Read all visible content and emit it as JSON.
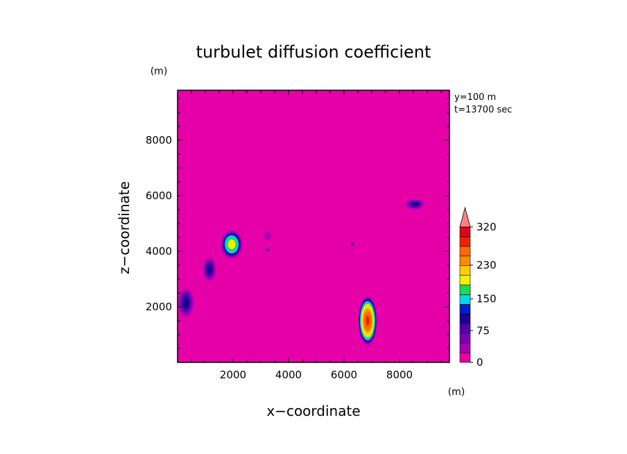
{
  "chart_data": {
    "type": "heatmap",
    "title": "turbulet diffusion coefficient",
    "xlabel": "x−coordinate",
    "ylabel": "z−coordinate",
    "x_unit": "(m)",
    "y_unit": "(m)",
    "xlim": [
      0,
      9800
    ],
    "ylim": [
      0,
      9800
    ],
    "xticks": [
      "2000",
      "4000",
      "6000",
      "8000"
    ],
    "xtick_values": [
      2000,
      4000,
      6000,
      8000
    ],
    "yticks": [
      "2000",
      "4000",
      "6000",
      "8000"
    ],
    "ytick_values": [
      2000,
      4000,
      6000,
      8000
    ],
    "annotations": [
      "y=100  m",
      "t=13700  sec"
    ],
    "background_color": "#e600a8",
    "colorbar": {
      "levels": [
        0,
        15,
        45,
        60,
        75,
        90,
        105,
        130,
        150,
        185,
        210,
        230,
        260,
        290,
        320
      ],
      "colors": [
        "#e600a8",
        "#a900b4",
        "#7d00b2",
        "#5500ae",
        "#1e0096",
        "#001fd2",
        "#00d8f0",
        "#14dc5a",
        "#f0f000",
        "#ffcc00",
        "#ff8c00",
        "#ff6a00",
        "#ee2200",
        "#e0001e"
      ],
      "tick_labels": [
        "0",
        "75",
        "150",
        "230",
        "320"
      ],
      "tick_values": [
        0,
        75,
        150,
        230,
        320
      ],
      "extend_color": "#ff8080"
    },
    "features": [
      {
        "x": 300,
        "z": 2150,
        "rx": 300,
        "rz": 550,
        "peak": 90
      },
      {
        "x": 1150,
        "z": 3350,
        "rx": 250,
        "rz": 450,
        "peak": 90
      },
      {
        "x": 1950,
        "z": 4250,
        "rx": 400,
        "rz": 520,
        "peak": 170
      },
      {
        "x": 6850,
        "z": 1500,
        "rx": 350,
        "rz": 900,
        "peak": 270
      },
      {
        "x": 8550,
        "z": 5700,
        "rx": 350,
        "rz": 200,
        "peak": 90
      },
      {
        "x": 3250,
        "z": 4550,
        "rx": 150,
        "rz": 200,
        "peak": 40
      },
      {
        "x": 6300,
        "z": 4250,
        "rx": 80,
        "rz": 80,
        "peak": 80
      },
      {
        "x": 3250,
        "z": 4050,
        "rx": 80,
        "rz": 80,
        "peak": 70
      }
    ]
  }
}
